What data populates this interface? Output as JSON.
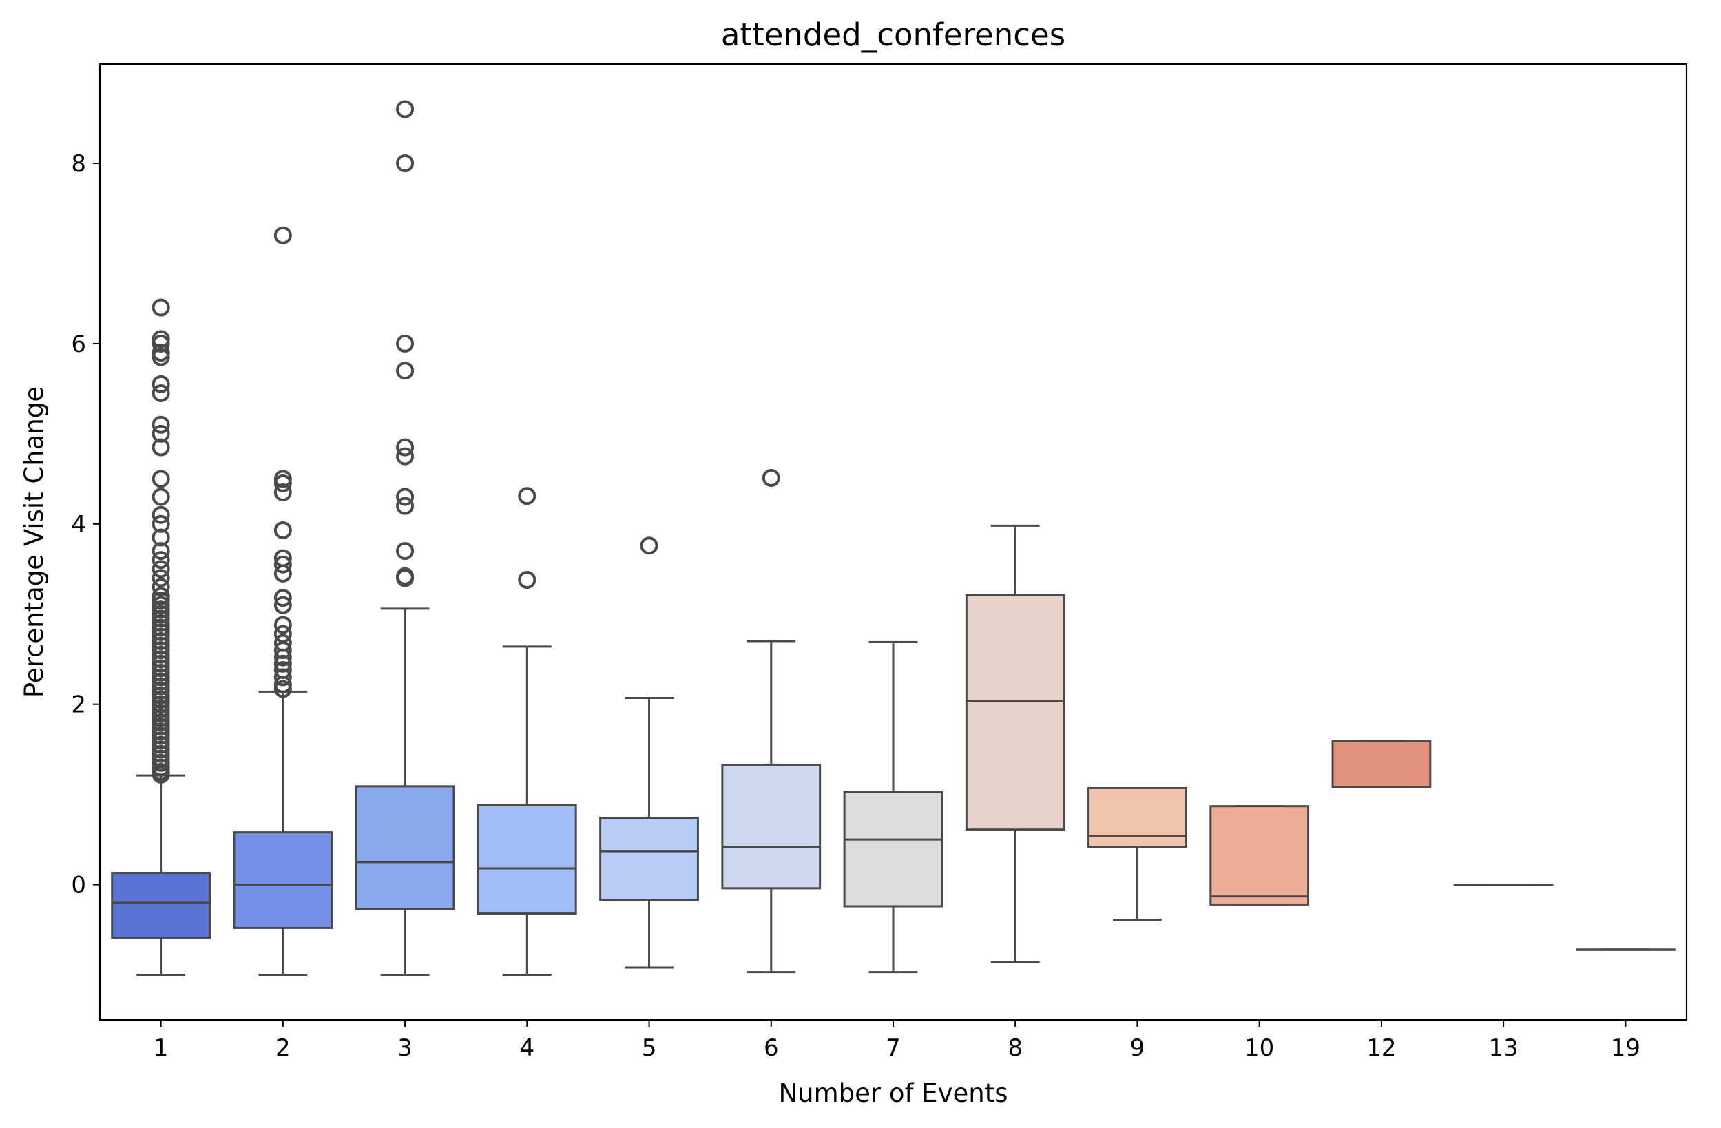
{
  "chart_data": {
    "type": "box",
    "title": "attended_conferences",
    "xlabel": "Number of Events",
    "ylabel": "Percentage Visit Change",
    "categories": [
      "1",
      "2",
      "3",
      "4",
      "5",
      "6",
      "7",
      "8",
      "9",
      "10",
      "12",
      "13",
      "19"
    ],
    "ylim": [
      -1.5,
      9.1
    ],
    "yticks": [
      0,
      2,
      4,
      6,
      8
    ],
    "grid": false,
    "legend": "none",
    "boxes": [
      {
        "category": "1",
        "color": "#5a73d6",
        "whisker_low": -1.0,
        "q1": -0.59,
        "median": -0.2,
        "q3": 0.13,
        "whisker_high": 1.21,
        "outliers": [
          1.22,
          1.25,
          1.3,
          1.35,
          1.4,
          1.45,
          1.5,
          1.55,
          1.6,
          1.65,
          1.7,
          1.75,
          1.8,
          1.85,
          1.9,
          1.95,
          2.0,
          2.05,
          2.1,
          2.15,
          2.2,
          2.25,
          2.3,
          2.35,
          2.4,
          2.45,
          2.5,
          2.55,
          2.6,
          2.65,
          2.7,
          2.75,
          2.8,
          2.85,
          2.9,
          2.95,
          3.0,
          3.05,
          3.1,
          3.15,
          3.2,
          3.3,
          3.4,
          3.5,
          3.6,
          3.7,
          3.85,
          4.0,
          4.1,
          4.3,
          4.5,
          4.85,
          5.0,
          5.1,
          5.45,
          5.55,
          5.85,
          5.9,
          6.0,
          6.05,
          6.4
        ]
      },
      {
        "category": "2",
        "color": "#7590e6",
        "whisker_low": -1.0,
        "q1": -0.48,
        "median": 0.0,
        "q3": 0.58,
        "whisker_high": 2.14,
        "outliers": [
          2.17,
          2.22,
          2.3,
          2.38,
          2.45,
          2.52,
          2.6,
          2.68,
          2.78,
          2.88,
          3.1,
          3.18,
          3.45,
          3.55,
          3.62,
          3.93,
          4.35,
          4.45,
          4.5,
          7.2
        ]
      },
      {
        "category": "3",
        "color": "#8ba8ef",
        "whisker_low": -1.0,
        "q1": -0.27,
        "median": 0.25,
        "q3": 1.09,
        "whisker_high": 3.06,
        "outliers": [
          3.4,
          3.42,
          3.7,
          4.2,
          4.3,
          4.75,
          4.85,
          5.7,
          6.0,
          8.0,
          8.6
        ]
      },
      {
        "category": "4",
        "color": "#a2bdf5",
        "whisker_low": -1.0,
        "q1": -0.32,
        "median": 0.18,
        "q3": 0.88,
        "whisker_high": 2.64,
        "outliers": [
          3.38,
          4.31
        ]
      },
      {
        "category": "5",
        "color": "#b8cef8",
        "whisker_low": -0.92,
        "q1": -0.17,
        "median": 0.37,
        "q3": 0.74,
        "whisker_high": 2.07,
        "outliers": [
          3.76
        ]
      },
      {
        "category": "6",
        "color": "#ccd8ef",
        "whisker_low": -0.97,
        "q1": -0.04,
        "median": 0.42,
        "q3": 1.33,
        "whisker_high": 2.7,
        "outliers": [
          4.51
        ]
      },
      {
        "category": "7",
        "color": "#dddddd",
        "whisker_low": -0.97,
        "q1": -0.24,
        "median": 0.5,
        "q3": 1.03,
        "whisker_high": 2.69,
        "outliers": []
      },
      {
        "category": "8",
        "color": "#e7d3c9",
        "whisker_low": -0.86,
        "q1": 0.61,
        "median": 2.04,
        "q3": 3.21,
        "whisker_high": 3.98,
        "outliers": []
      },
      {
        "category": "9",
        "color": "#f1c3ae",
        "whisker_low": -0.39,
        "q1": 0.42,
        "median": 0.54,
        "q3": 1.07,
        "whisker_high": 1.07,
        "outliers": []
      },
      {
        "category": "10",
        "color": "#edae98",
        "whisker_low": -0.22,
        "q1": -0.22,
        "median": -0.13,
        "q3": 0.87,
        "whisker_high": 0.87,
        "outliers": []
      },
      {
        "category": "12",
        "color": "#e3937b",
        "whisker_low": 1.08,
        "q1": 1.08,
        "median": 1.08,
        "q3": 1.59,
        "whisker_high": 1.59,
        "outliers": []
      },
      {
        "category": "13",
        "color": "#dddddd",
        "whisker_low": 0.0,
        "q1": 0.0,
        "median": 0.0,
        "q3": 0.0,
        "whisker_high": 0.0,
        "outliers": []
      },
      {
        "category": "19",
        "color": "#dddddd",
        "whisker_low": -0.72,
        "q1": -0.72,
        "median": -0.72,
        "q3": -0.72,
        "whisker_high": -0.72,
        "outliers": []
      }
    ]
  }
}
